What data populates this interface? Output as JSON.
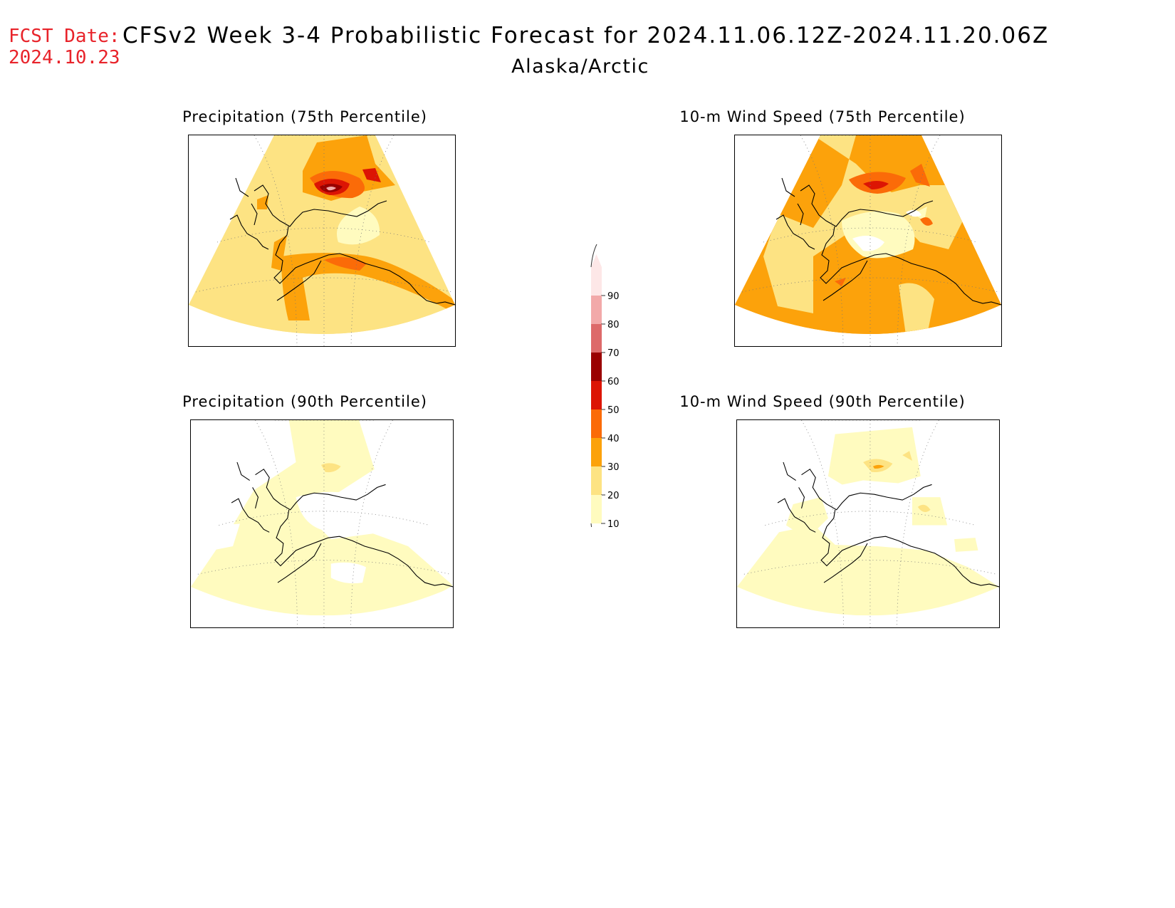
{
  "header": {
    "fcst_label": "FCST Date:",
    "fcst_date": "2024.10.23",
    "title": "CFSv2 Week 3-4 Probabilistic Forecast for 2024.11.06.12Z-2024.11.20.06Z",
    "region": "Alaska/Arctic"
  },
  "panels": [
    {
      "id": "precip75",
      "title": "Precipitation (75th Percentile)"
    },
    {
      "id": "wind75",
      "title": "10-m Wind Speed (75th Percentile)"
    },
    {
      "id": "precip90",
      "title": "Precipitation (90th Percentile)"
    },
    {
      "id": "wind90",
      "title": "10-m Wind Speed (90th Percentile)"
    }
  ],
  "colorbar": {
    "ticks": [
      "90",
      "80",
      "70",
      "60",
      "50",
      "40",
      "30",
      "20",
      "10"
    ],
    "colors": {
      "10": "#fffbbf",
      "20": "#fde383",
      "30": "#fca20b",
      "40": "#fb6b08",
      "50": "#dc1504",
      "60": "#9a0000",
      "70": "#dd6a6a",
      "80": "#f2a9a9",
      "90": "#fde7e7"
    }
  },
  "colors": {
    "coast": "#000000",
    "fcst_text": "#e8232a",
    "grid": "#777777"
  }
}
